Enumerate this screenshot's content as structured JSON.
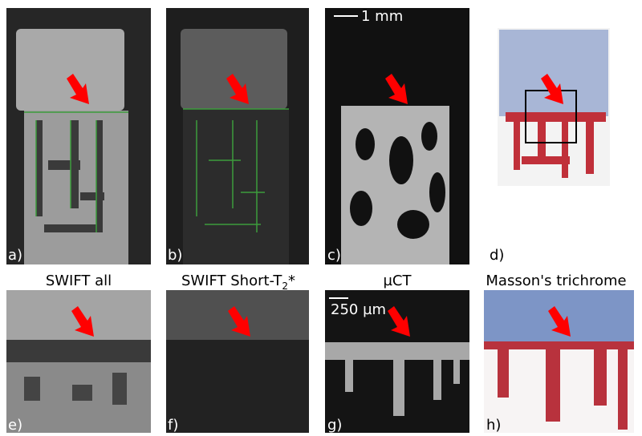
{
  "panels": {
    "a": "a)",
    "b": "b)",
    "c": "c)",
    "d": "d)",
    "e": "e)",
    "f": "f)",
    "g": "g)",
    "h": "h)"
  },
  "scale_bars": {
    "top": "1 mm",
    "bottom": "250 µm"
  },
  "titles": {
    "e": "SWIFT all",
    "f": {
      "main": "SWIFT Short-T",
      "subscript": "2",
      "suffix": "*"
    },
    "g": "µCT",
    "h": "Masson's trichrome"
  }
}
